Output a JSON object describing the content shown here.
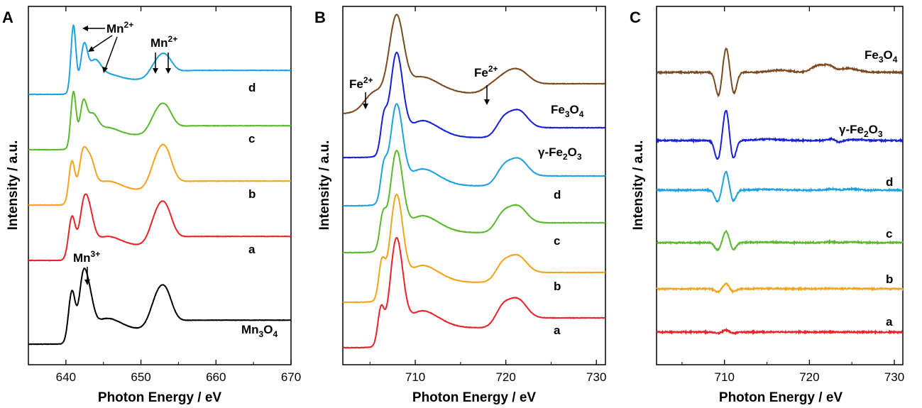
{
  "chart_data": [
    {
      "panel": "A",
      "type": "line",
      "xlabel": "Photon Energy / eV",
      "ylabel": "Intensity / a.u.",
      "xlim": [
        635,
        670
      ],
      "xticks": [
        "640",
        "650",
        "660",
        "670"
      ],
      "series": [
        {
          "name": "Mn3O4",
          "label_main": "Mn",
          "label_sub": "3",
          "label_end": "O",
          "label_sub2": "4",
          "color": "#000000",
          "offset": 0,
          "peaks": [
            [
              640.8,
              0.55,
              0.45
            ],
            [
              642.2,
              0.5,
              0.5
            ],
            [
              643.0,
              0.4,
              0.6
            ],
            [
              645.5,
              0.12,
              1.8
            ],
            [
              652.0,
              0.26,
              0.9
            ],
            [
              653.3,
              0.34,
              0.9
            ]
          ]
        },
        {
          "name": "a",
          "color": "#e8232a",
          "offset": 1,
          "peaks": [
            [
              640.8,
              0.45,
              0.45
            ],
            [
              642.3,
              0.42,
              0.55
            ],
            [
              643.1,
              0.33,
              0.6
            ],
            [
              645.5,
              0.1,
              1.8
            ],
            [
              652.0,
              0.26,
              0.9
            ],
            [
              653.3,
              0.34,
              0.9
            ]
          ]
        },
        {
          "name": "b",
          "color": "#f4a31b",
          "offset": 2,
          "peaks": [
            [
              640.8,
              0.45,
              0.4
            ],
            [
              642.2,
              0.42,
              0.5
            ],
            [
              643.2,
              0.33,
              0.6
            ],
            [
              645.5,
              0.1,
              1.8
            ],
            [
              652.0,
              0.25,
              0.9
            ],
            [
              653.3,
              0.36,
              0.9
            ]
          ]
        },
        {
          "name": "c",
          "color": "#5cb82e",
          "offset": 3,
          "peaks": [
            [
              641.0,
              0.6,
              0.35
            ],
            [
              642.3,
              0.4,
              0.45
            ],
            [
              643.5,
              0.22,
              0.7
            ],
            [
              645.5,
              0.08,
              1.5
            ],
            [
              652.0,
              0.18,
              0.9
            ],
            [
              653.3,
              0.24,
              0.9
            ]
          ]
        },
        {
          "name": "d",
          "color": "#1ea1dd",
          "offset": 4,
          "peaks": [
            [
              641.0,
              0.72,
              0.33
            ],
            [
              642.4,
              0.42,
              0.45
            ],
            [
              643.8,
              0.2,
              0.8
            ],
            [
              645.5,
              0.06,
              1.5
            ],
            [
              652.0,
              0.14,
              0.9
            ],
            [
              653.3,
              0.2,
              0.9
            ]
          ]
        }
      ],
      "annotations": [
        {
          "text": "Mn",
          "sup": "2+"
        },
        {
          "text": "Mn",
          "sup": "2+"
        },
        {
          "text": "Mn",
          "sup": "3+"
        }
      ]
    },
    {
      "panel": "B",
      "type": "line",
      "xlabel": "Photon Energy / eV",
      "ylabel": "Intensity / a.u.",
      "xlim": [
        702,
        731
      ],
      "xticks": [
        "710",
        "720",
        "730"
      ],
      "series": [
        {
          "name": "a",
          "color": "#e8232a",
          "offset": 0,
          "peaks": [
            [
              706.2,
              0.35,
              0.35
            ],
            [
              707.9,
              1.0,
              0.7
            ],
            [
              710.5,
              0.18,
              2.0
            ],
            [
              719.6,
              0.17,
              0.8
            ],
            [
              721.2,
              0.24,
              1.0
            ]
          ]
        },
        {
          "name": "b",
          "color": "#f4a31b",
          "offset": 1,
          "peaks": [
            [
              706.3,
              0.35,
              0.35
            ],
            [
              707.9,
              0.98,
              0.7
            ],
            [
              710.5,
              0.18,
              2.0
            ],
            [
              719.6,
              0.15,
              0.8
            ],
            [
              721.2,
              0.22,
              1.0
            ]
          ]
        },
        {
          "name": "c",
          "color": "#5cb82e",
          "offset": 2,
          "peaks": [
            [
              706.4,
              0.3,
              0.35
            ],
            [
              707.9,
              0.92,
              0.7
            ],
            [
              710.5,
              0.18,
              2.0
            ],
            [
              719.6,
              0.15,
              0.8
            ],
            [
              721.2,
              0.22,
              1.0
            ]
          ]
        },
        {
          "name": "d",
          "color": "#1ea1dd",
          "offset": 3,
          "peaks": [
            [
              706.5,
              0.3,
              0.35
            ],
            [
              707.9,
              0.92,
              0.7
            ],
            [
              710.5,
              0.18,
              2.0
            ],
            [
              719.7,
              0.15,
              0.8
            ],
            [
              721.3,
              0.22,
              1.0
            ]
          ]
        },
        {
          "name": "γ-Fe2O3",
          "label_main": "γ-Fe",
          "label_sub": "2",
          "label_end": "O",
          "label_sub2": "3",
          "color": "#1521d6",
          "offset": 4,
          "peaks": [
            [
              706.5,
              0.3,
              0.35
            ],
            [
              707.9,
              0.95,
              0.7
            ],
            [
              710.5,
              0.18,
              2.0
            ],
            [
              719.7,
              0.15,
              0.8
            ],
            [
              721.3,
              0.22,
              1.0
            ]
          ]
        },
        {
          "name": "Fe3O4",
          "label_main": "Fe",
          "label_sub": "3",
          "label_end": "O",
          "label_sub2": "4",
          "color": "#7a4a1e",
          "offset": 5,
          "peaks": [
            [
              705.5,
              0.2,
              1.1
            ],
            [
              707.9,
              0.85,
              0.8
            ],
            [
              710.3,
              0.18,
              2.2
            ],
            [
              718.6,
              0.08,
              1.0
            ],
            [
              720.2,
              0.15,
              1.0
            ],
            [
              721.6,
              0.13,
              1.0
            ]
          ]
        }
      ],
      "annotations": [
        {
          "text": "Fe",
          "sup": "2+"
        },
        {
          "text": "Fe",
          "sup": "2+"
        }
      ]
    },
    {
      "panel": "C",
      "type": "line",
      "xlabel": "Photon Energy / eV",
      "ylabel": "Intensity / a.u.",
      "xlim": [
        702,
        731
      ],
      "xticks": [
        "710",
        "720",
        "730"
      ],
      "series": [
        {
          "name": "a",
          "color": "#e8232a",
          "offset": 0,
          "scale": 0.06
        },
        {
          "name": "b",
          "color": "#f4a31b",
          "offset": 1,
          "scale": 0.17
        },
        {
          "name": "c",
          "color": "#5cb82e",
          "offset": 2,
          "scale": 0.38
        },
        {
          "name": "d",
          "color": "#1ea1dd",
          "offset": 3,
          "scale": 0.6
        },
        {
          "name": "γ-Fe2O3",
          "label_main": "γ-Fe",
          "label_sub": "2",
          "label_end": "O",
          "label_sub2": "3",
          "color": "#1521d6",
          "offset": 4,
          "scale": 1.0
        },
        {
          "name": "Fe3O4",
          "label_main": "Fe",
          "label_sub": "3",
          "label_end": "O",
          "label_sub2": "4",
          "color": "#7a4a1e",
          "offset": 5,
          "scale": 1.0,
          "ferri": true
        }
      ]
    }
  ],
  "panels": [
    {
      "letter": "A",
      "xlabel": "Photon Energy / eV",
      "ylabel": "Intensity / a.u."
    },
    {
      "letter": "B",
      "xlabel": "Photon Energy / eV",
      "ylabel": "Intensity / a.u."
    },
    {
      "letter": "C",
      "xlabel": "Photon Energy / eV",
      "ylabel": "Intensity / a.u."
    }
  ]
}
